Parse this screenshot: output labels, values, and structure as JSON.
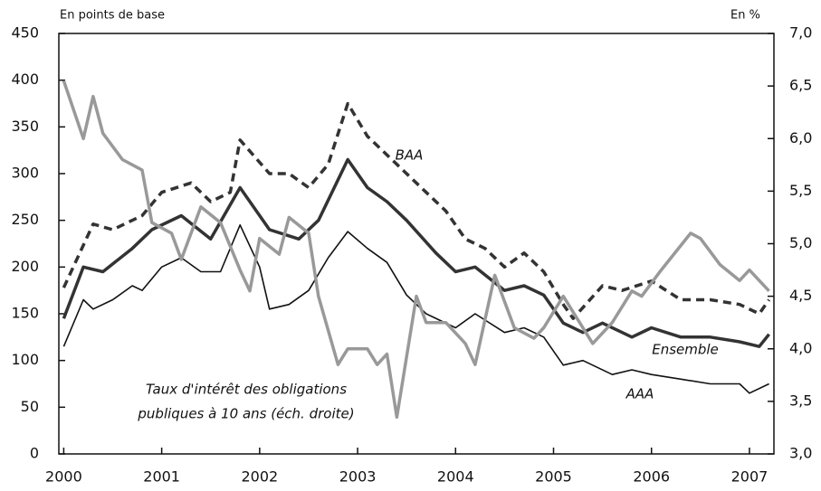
{
  "chart_data": {
    "type": "line",
    "y_label": "En points de base",
    "y2_label": "En %",
    "xlim": [
      1999.95,
      2007.25
    ],
    "xticks": [
      2000,
      2001,
      2002,
      2003,
      2004,
      2005,
      2006,
      2007
    ],
    "ylim": [
      0,
      450
    ],
    "yticks": [
      0,
      50,
      100,
      150,
      200,
      250,
      300,
      350,
      400,
      450
    ],
    "y2lim": [
      3.0,
      7.0
    ],
    "y2ticks": [
      {
        "value": 3.0,
        "label": "3,0"
      },
      {
        "value": 3.5,
        "label": "3,5"
      },
      {
        "value": 4.0,
        "label": "4,0"
      },
      {
        "value": 4.5,
        "label": "4,5"
      },
      {
        "value": 5.0,
        "label": "5,0"
      },
      {
        "value": 5.5,
        "label": "5,5"
      },
      {
        "value": 6.0,
        "label": "6,0"
      },
      {
        "value": 6.5,
        "label": "6,5"
      },
      {
        "value": 7.0,
        "label": "7,0"
      }
    ],
    "annotations": [
      "BAA",
      "Ensemble",
      "AAA",
      "Taux d'intérêt des obligations",
      "publiques à 10 ans (éch. droite)"
    ],
    "series": [
      {
        "name": "BAA",
        "color": "#333333",
        "dashed": true,
        "linewidth": 3.5,
        "x": [
          2000.0,
          2000.3,
          2000.5,
          2000.8,
          2001.0,
          2001.3,
          2001.5,
          2001.7,
          2001.8,
          2002.1,
          2002.3,
          2002.5,
          2002.7,
          2002.9,
          2003.1,
          2003.4,
          2003.7,
          2003.9,
          2004.1,
          2004.3,
          2004.5,
          2004.7,
          2004.9,
          2005.1,
          2005.2,
          2005.5,
          2005.7,
          2006.0,
          2006.3,
          2006.6,
          2006.9,
          2007.1,
          2007.2
        ],
        "values": [
          178,
          246,
          240,
          255,
          280,
          290,
          270,
          280,
          336,
          300,
          300,
          285,
          310,
          375,
          340,
          310,
          280,
          260,
          230,
          220,
          200,
          215,
          195,
          160,
          145,
          180,
          175,
          185,
          165,
          165,
          160,
          150,
          165
        ]
      },
      {
        "name": "Ensemble",
        "color": "#333333",
        "dashed": false,
        "linewidth": 3.5,
        "x": [
          2000.0,
          2000.2,
          2000.4,
          2000.7,
          2000.9,
          2001.2,
          2001.5,
          2001.8,
          2002.1,
          2002.4,
          2002.6,
          2002.9,
          2003.1,
          2003.3,
          2003.5,
          2003.8,
          2004.0,
          2004.2,
          2004.5,
          2004.7,
          2004.9,
          2005.1,
          2005.3,
          2005.5,
          2005.8,
          2006.0,
          2006.3,
          2006.6,
          2006.9,
          2007.1,
          2007.2
        ],
        "values": [
          145,
          200,
          195,
          220,
          240,
          255,
          230,
          285,
          240,
          230,
          250,
          315,
          285,
          270,
          250,
          215,
          195,
          200,
          175,
          180,
          170,
          140,
          130,
          140,
          125,
          135,
          125,
          125,
          120,
          115,
          128
        ]
      },
      {
        "name": "AAA",
        "color": "#111111",
        "dashed": false,
        "linewidth": 1.6,
        "x": [
          2000.0,
          2000.2,
          2000.3,
          2000.5,
          2000.7,
          2000.8,
          2001.0,
          2001.2,
          2001.4,
          2001.6,
          2001.8,
          2002.0,
          2002.1,
          2002.3,
          2002.5,
          2002.7,
          2002.9,
          2003.1,
          2003.3,
          2003.5,
          2003.7,
          2004.0,
          2004.2,
          2004.5,
          2004.7,
          2004.9,
          2005.1,
          2005.3,
          2005.6,
          2005.8,
          2006.0,
          2006.3,
          2006.6,
          2006.9,
          2007.0,
          2007.2
        ],
        "values": [
          115,
          165,
          155,
          165,
          180,
          175,
          200,
          210,
          195,
          195,
          245,
          200,
          155,
          160,
          175,
          210,
          238,
          220,
          205,
          170,
          150,
          135,
          150,
          130,
          135,
          125,
          95,
          100,
          85,
          90,
          85,
          80,
          75,
          75,
          65,
          75
        ]
      },
      {
        "name": "Taux d'intérêt des obligations publiques à 10 ans",
        "color": "#999999",
        "dashed": false,
        "linewidth": 3.5,
        "axis": "y2",
        "x": [
          2000.0,
          2000.2,
          2000.3,
          2000.4,
          2000.6,
          2000.8,
          2000.9,
          2001.1,
          2001.2,
          2001.4,
          2001.6,
          2001.8,
          2001.9,
          2002.0,
          2002.2,
          2002.3,
          2002.5,
          2002.6,
          2002.8,
          2002.9,
          2003.1,
          2003.2,
          2003.3,
          2003.4,
          2003.6,
          2003.7,
          2003.9,
          2004.1,
          2004.2,
          2004.4,
          2004.6,
          2004.8,
          2004.9,
          2005.1,
          2005.4,
          2005.6,
          2005.8,
          2005.9,
          2006.1,
          2006.4,
          2006.5,
          2006.7,
          2006.9,
          2007.0,
          2007.2
        ],
        "values": [
          6.55,
          6.0,
          6.4,
          6.05,
          5.8,
          5.7,
          5.2,
          5.1,
          4.85,
          5.35,
          5.2,
          4.75,
          4.55,
          5.05,
          4.9,
          5.25,
          5.1,
          4.5,
          3.85,
          4.0,
          4.0,
          3.85,
          3.95,
          3.35,
          4.5,
          4.25,
          4.25,
          4.05,
          3.85,
          4.7,
          4.2,
          4.1,
          4.2,
          4.5,
          4.05,
          4.25,
          4.55,
          4.5,
          4.75,
          5.1,
          5.05,
          4.8,
          4.65,
          4.75,
          4.55
        ]
      }
    ]
  }
}
